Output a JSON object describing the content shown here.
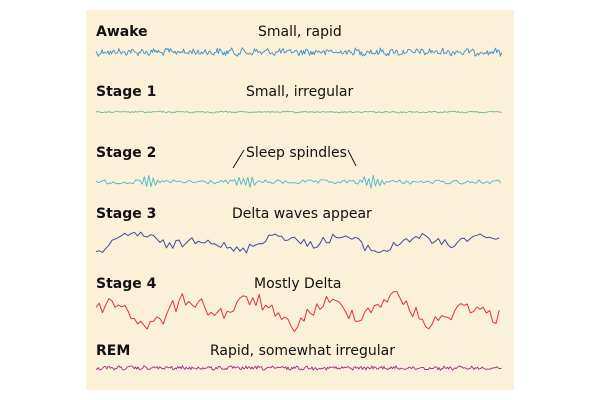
{
  "stages": [
    {
      "id": "awake",
      "label": "Awake",
      "description": "Small, rapid",
      "color": "#3a8fcf",
      "amplitude": 0.28,
      "frequency": "high",
      "wave_kind": "rapid"
    },
    {
      "id": "stage1",
      "label": "Stage 1",
      "description": "Small, irregular",
      "color": "#6fbe86",
      "amplitude": 0.08,
      "frequency": "high",
      "wave_kind": "irregular"
    },
    {
      "id": "stage2",
      "label": "Stage 2",
      "description": "Sleep spindles",
      "color": "#4fb8c6",
      "amplitude": 0.35,
      "frequency": "medium",
      "wave_kind": "spindles"
    },
    {
      "id": "stage3",
      "label": "Stage 3",
      "description": "Delta waves appear",
      "color": "#3a4fa0",
      "amplitude": 0.5,
      "frequency": "low",
      "wave_kind": "delta"
    },
    {
      "id": "stage4",
      "label": "Stage 4",
      "description": "Mostly Delta",
      "color": "#e0304c",
      "amplitude": 0.85,
      "frequency": "low",
      "wave_kind": "delta"
    },
    {
      "id": "rem",
      "label": "REM",
      "description": "Rapid, somewhat irregular",
      "color": "#a02c8e",
      "amplitude": 0.15,
      "frequency": "high",
      "wave_kind": "rapid"
    }
  ],
  "colors": {
    "panel_background": "#fbf0d8",
    "text": "#111111"
  }
}
